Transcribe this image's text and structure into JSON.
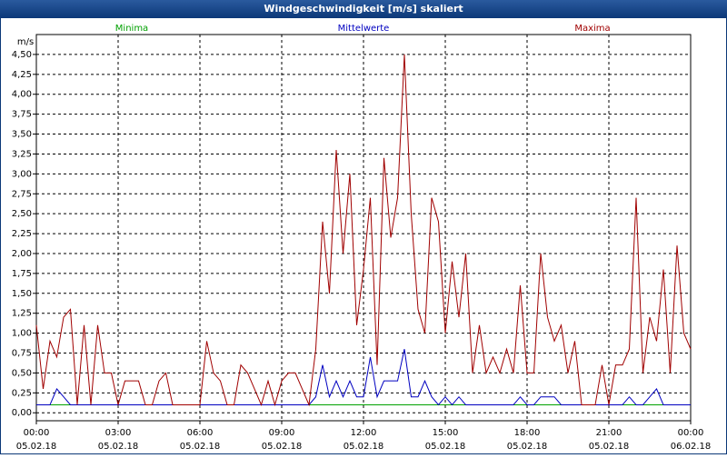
{
  "chart_data": {
    "type": "line",
    "title": "Windgeschwindigkeit [m/s] skaliert",
    "ylabel": "m/s",
    "grid": true,
    "xlim": [
      0,
      24
    ],
    "ylim": [
      -0.1,
      4.75
    ],
    "xticks": [
      {
        "value": 0,
        "label": "00:00",
        "date": "05.02.18"
      },
      {
        "value": 3,
        "label": "03:00",
        "date": "05.02.18"
      },
      {
        "value": 6,
        "label": "06:00",
        "date": "05.02.18"
      },
      {
        "value": 9,
        "label": "09:00",
        "date": "05.02.18"
      },
      {
        "value": 12,
        "label": "12:00",
        "date": "05.02.18"
      },
      {
        "value": 15,
        "label": "15:00",
        "date": "05.02.18"
      },
      {
        "value": 18,
        "label": "18:00",
        "date": "05.02.18"
      },
      {
        "value": 21,
        "label": "21:00",
        "date": "05.02.18"
      },
      {
        "value": 24,
        "label": "00:00",
        "date": "06.02.18"
      }
    ],
    "yticks": [
      {
        "value": 0,
        "label": "0,00"
      },
      {
        "value": 0.25,
        "label": "0,25"
      },
      {
        "value": 0.5,
        "label": "0,50"
      },
      {
        "value": 0.75,
        "label": "0,75"
      },
      {
        "value": 1,
        "label": "1,00"
      },
      {
        "value": 1.25,
        "label": "1,25"
      },
      {
        "value": 1.5,
        "label": "1,50"
      },
      {
        "value": 1.75,
        "label": "1,75"
      },
      {
        "value": 2,
        "label": "2,00"
      },
      {
        "value": 2.25,
        "label": "2,25"
      },
      {
        "value": 2.5,
        "label": "2,50"
      },
      {
        "value": 2.75,
        "label": "2,75"
      },
      {
        "value": 3,
        "label": "3,00"
      },
      {
        "value": 3.25,
        "label": "3,25"
      },
      {
        "value": 3.5,
        "label": "3,50"
      },
      {
        "value": 3.75,
        "label": "3,75"
      },
      {
        "value": 4,
        "label": "4,00"
      },
      {
        "value": 4.25,
        "label": "4,25"
      },
      {
        "value": 4.5,
        "label": "4,50"
      }
    ],
    "x": [
      0,
      0.25,
      0.5,
      0.75,
      1,
      1.25,
      1.5,
      1.75,
      2,
      2.25,
      2.5,
      2.75,
      3,
      3.25,
      3.5,
      3.75,
      4,
      4.25,
      4.5,
      4.75,
      5,
      5.25,
      5.5,
      5.75,
      6,
      6.25,
      6.5,
      6.75,
      7,
      7.25,
      7.5,
      7.75,
      8,
      8.25,
      8.5,
      8.75,
      9,
      9.25,
      9.5,
      9.75,
      10,
      10.25,
      10.5,
      10.75,
      11,
      11.25,
      11.5,
      11.75,
      12,
      12.25,
      12.5,
      12.75,
      13,
      13.25,
      13.5,
      13.75,
      14,
      14.25,
      14.5,
      14.75,
      15,
      15.25,
      15.5,
      15.75,
      16,
      16.25,
      16.5,
      16.75,
      17,
      17.25,
      17.5,
      17.75,
      18,
      18.25,
      18.5,
      18.75,
      19,
      19.25,
      19.5,
      19.75,
      20,
      20.25,
      20.5,
      20.75,
      21,
      21.25,
      21.5,
      21.75,
      22,
      22.25,
      22.5,
      22.75,
      23,
      23.25,
      23.5,
      23.75,
      24
    ],
    "series": [
      {
        "name": "Minima",
        "color": "#00a000",
        "values": [
          0.1,
          0.1,
          0.1,
          0.1,
          0.1,
          0.1,
          0.1,
          0.1,
          0.1,
          0.1,
          0.1,
          0.1,
          0.1,
          0.1,
          0.1,
          0.1,
          0.1,
          0.1,
          0.1,
          0.1,
          0.1,
          0.1,
          0.1,
          0.1,
          0.1,
          0.1,
          0.1,
          0.1,
          0.1,
          0.1,
          0.1,
          0.1,
          0.1,
          0.1,
          0.1,
          0.1,
          0.1,
          0.1,
          0.1,
          0.1,
          0.1,
          0.1,
          0.1,
          0.1,
          0.1,
          0.1,
          0.1,
          0.1,
          0.1,
          0.1,
          0.1,
          0.1,
          0.1,
          0.1,
          0.1,
          0.1,
          0.1,
          0.1,
          0.1,
          0.1,
          0.1,
          0.1,
          0.1,
          0.1,
          0.1,
          0.1,
          0.1,
          0.1,
          0.1,
          0.1,
          0.1,
          0.1,
          0.1,
          0.1,
          0.1,
          0.1,
          0.1,
          0.1,
          0.1,
          0.1,
          0.1,
          0.1,
          0.1,
          0.1,
          0.1,
          0.1,
          0.1,
          0.1,
          0.1,
          0.1,
          0.1,
          0.1,
          0.1,
          0.1,
          0.1,
          0.1,
          0.1
        ]
      },
      {
        "name": "Mittelwerte",
        "color": "#0000c0",
        "values": [
          0.1,
          0.1,
          0.1,
          0.3,
          0.2,
          0.1,
          0.1,
          0.1,
          0.1,
          0.1,
          0.1,
          0.1,
          0.1,
          0.1,
          0.1,
          0.1,
          0.1,
          0.1,
          0.1,
          0.1,
          0.1,
          0.1,
          0.1,
          0.1,
          0.1,
          0.1,
          0.1,
          0.1,
          0.1,
          0.1,
          0.1,
          0.1,
          0.1,
          0.1,
          0.1,
          0.1,
          0.1,
          0.1,
          0.1,
          0.1,
          0.1,
          0.2,
          0.6,
          0.2,
          0.4,
          0.2,
          0.4,
          0.2,
          0.2,
          0.7,
          0.2,
          0.4,
          0.4,
          0.4,
          0.8,
          0.2,
          0.2,
          0.4,
          0.2,
          0.1,
          0.2,
          0.1,
          0.2,
          0.1,
          0.1,
          0.1,
          0.1,
          0.1,
          0.1,
          0.1,
          0.1,
          0.2,
          0.1,
          0.1,
          0.2,
          0.2,
          0.2,
          0.1,
          0.1,
          0.1,
          0.1,
          0.1,
          0.1,
          0.1,
          0.1,
          0.1,
          0.1,
          0.2,
          0.1,
          0.1,
          0.2,
          0.3,
          0.1,
          0.1,
          0.1,
          0.1,
          0.1
        ]
      },
      {
        "name": "Maxima",
        "color": "#a00000",
        "values": [
          1.1,
          0.3,
          0.9,
          0.7,
          1.2,
          1.3,
          0.1,
          1.1,
          0.1,
          1.1,
          0.5,
          0.5,
          0.1,
          0.4,
          0.4,
          0.4,
          0.1,
          0.1,
          0.4,
          0.5,
          0.1,
          0.1,
          0.1,
          0.1,
          0.1,
          0.9,
          0.5,
          0.4,
          0.1,
          0.1,
          0.6,
          0.5,
          0.3,
          0.1,
          0.4,
          0.1,
          0.4,
          0.5,
          0.5,
          0.3,
          0.1,
          0.8,
          2.4,
          1.5,
          3.3,
          2.0,
          3.0,
          1.1,
          1.8,
          2.7,
          0.6,
          3.2,
          2.2,
          2.7,
          4.5,
          2.5,
          1.3,
          1.0,
          2.7,
          2.4,
          1.0,
          1.9,
          1.2,
          2.0,
          0.5,
          1.1,
          0.5,
          0.7,
          0.5,
          0.8,
          0.5,
          1.6,
          0.5,
          0.5,
          2.0,
          1.2,
          0.9,
          1.1,
          0.5,
          0.9,
          0.1,
          0.1,
          0.1,
          0.6,
          0.1,
          0.6,
          0.6,
          0.8,
          2.7,
          0.5,
          1.2,
          0.9,
          1.8,
          0.5,
          2.1,
          1.0,
          0.8
        ]
      }
    ]
  }
}
